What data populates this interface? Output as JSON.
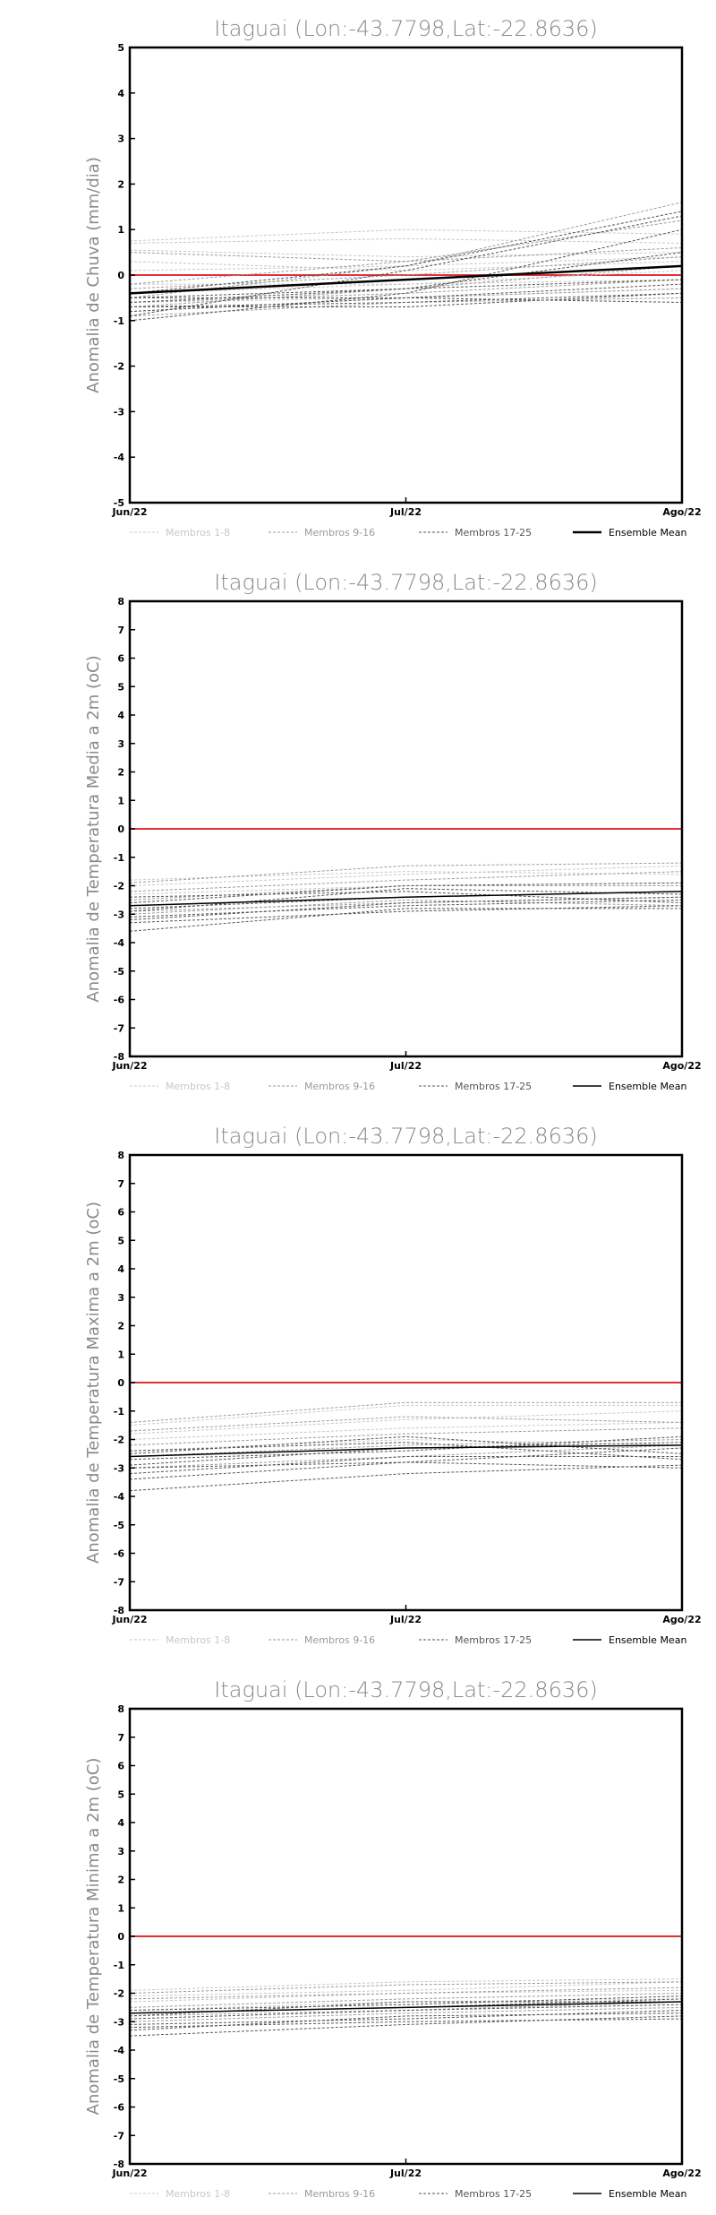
{
  "chart_data": [
    {
      "type": "line",
      "title": "Itaguai (Lon:-43.7798,Lat:-22.8636)",
      "ylabel": "Anomalia de Chuva (mm/dia)",
      "xlabel": "",
      "categories": [
        "Jun/22",
        "Jul/22",
        "Ago/22"
      ],
      "ylim": [
        -5,
        5
      ],
      "yticks": [
        "-5",
        "-4",
        "-3",
        "-2",
        "-1",
        "0",
        "1",
        "2",
        "3",
        "4",
        "5"
      ],
      "legend": [
        {
          "name": "Membros 1-8",
          "color": "#c8c8c8",
          "dash": "3,2",
          "width": 1
        },
        {
          "name": "Membros 9-16",
          "color": "#9a9a9a",
          "dash": "3,2",
          "width": 1
        },
        {
          "name": "Membros 17-25",
          "color": "#555555",
          "dash": "3,2",
          "width": 1
        },
        {
          "name": "Ensemble Mean",
          "color": "#000000",
          "dash": "",
          "width": 2.5
        }
      ],
      "reference_line": {
        "value": 0,
        "color": "#e03030"
      },
      "groups": [
        {
          "legend_index": 0,
          "series": [
            [
              0.75,
              1.0,
              0.9
            ],
            [
              0.55,
              0.4,
              0.5
            ],
            [
              -0.4,
              -0.2,
              0.1
            ],
            [
              0.3,
              0.1,
              0.3
            ],
            [
              -0.2,
              -0.2,
              -0.1
            ],
            [
              0.7,
              0.8,
              0.7
            ],
            [
              -0.6,
              -0.5,
              -0.3
            ],
            [
              0.1,
              0.2,
              0.4
            ]
          ]
        },
        {
          "legend_index": 1,
          "series": [
            [
              -0.5,
              0.2,
              1.6
            ],
            [
              -0.7,
              -0.3,
              0.2
            ],
            [
              0.5,
              0.3,
              1.2
            ],
            [
              -0.8,
              -0.5,
              -0.3
            ],
            [
              -0.3,
              0.0,
              0.4
            ],
            [
              -0.6,
              -0.4,
              -0.1
            ],
            [
              -0.9,
              -0.6,
              -0.5
            ],
            [
              -0.2,
              0.3,
              0.6
            ]
          ]
        },
        {
          "legend_index": 2,
          "series": [
            [
              -0.9,
              0.1,
              1.3
            ],
            [
              -0.5,
              -0.5,
              -0.6
            ],
            [
              -0.7,
              -0.6,
              -0.4
            ],
            [
              -1.0,
              -0.4,
              1.0
            ],
            [
              -0.4,
              0.2,
              1.4
            ],
            [
              -0.8,
              -0.5,
              -0.2
            ],
            [
              -0.6,
              -0.3,
              0.5
            ],
            [
              -0.7,
              -0.7,
              -0.4
            ],
            [
              -0.5,
              -0.3,
              -0.1
            ]
          ]
        },
        {
          "legend_index": 3,
          "series": [
            [
              -0.4,
              -0.1,
              0.2
            ]
          ]
        }
      ]
    },
    {
      "type": "line",
      "title": "Itaguai (Lon:-43.7798,Lat:-22.8636)",
      "ylabel": "Anomalia de Temperatura Media a 2m (oC)",
      "xlabel": "",
      "categories": [
        "Jun/22",
        "Jul/22",
        "Ago/22"
      ],
      "ylim": [
        -8,
        8
      ],
      "yticks": [
        "-8",
        "-7",
        "-6",
        "-5",
        "-4",
        "-3",
        "-2",
        "-1",
        "0",
        "1",
        "2",
        "3",
        "4",
        "5",
        "6",
        "7",
        "8"
      ],
      "legend": [
        {
          "name": "Membros 1-8",
          "color": "#c8c8c8",
          "dash": "3,2",
          "width": 1
        },
        {
          "name": "Membros 9-16",
          "color": "#9a9a9a",
          "dash": "3,2",
          "width": 1
        },
        {
          "name": "Membros 17-25",
          "color": "#555555",
          "dash": "3,2",
          "width": 1
        },
        {
          "name": "Ensemble Mean",
          "color": "#000000",
          "dash": "",
          "width": 1.5
        }
      ],
      "reference_line": {
        "value": 0,
        "color": "#e03030"
      },
      "groups": [
        {
          "legend_index": 0,
          "series": [
            [
              -2.0,
              -1.6,
              -1.3
            ],
            [
              -2.3,
              -2.0,
              -1.9
            ],
            [
              -2.7,
              -2.4,
              -2.2
            ],
            [
              -1.8,
              -1.5,
              -1.6
            ]
          ]
        },
        {
          "legend_index": 1,
          "series": [
            [
              -1.9,
              -1.3,
              -1.2
            ],
            [
              -2.5,
              -2.0,
              -2.0
            ],
            [
              -2.9,
              -2.6,
              -2.4
            ],
            [
              -3.0,
              -2.5,
              -2.7
            ],
            [
              -2.2,
              -1.8,
              -1.5
            ]
          ]
        },
        {
          "legend_index": 2,
          "series": [
            [
              -3.6,
              -2.8,
              -2.8
            ],
            [
              -3.2,
              -2.6,
              -2.4
            ],
            [
              -2.8,
              -2.4,
              -2.2
            ],
            [
              -2.6,
              -2.0,
              -1.9
            ],
            [
              -3.1,
              -2.7,
              -2.5
            ],
            [
              -2.4,
              -2.2,
              -2.6
            ],
            [
              -3.3,
              -2.9,
              -2.7
            ],
            [
              -2.9,
              -2.1,
              -2.3
            ]
          ]
        },
        {
          "legend_index": 3,
          "series": [
            [
              -2.7,
              -2.4,
              -2.2
            ]
          ]
        }
      ]
    },
    {
      "type": "line",
      "title": "Itaguai (Lon:-43.7798,Lat:-22.8636)",
      "ylabel": "Anomalia de Temperatura Maxima a 2m (oC)",
      "xlabel": "",
      "categories": [
        "Jun/22",
        "Jul/22",
        "Ago/22"
      ],
      "ylim": [
        -8,
        8
      ],
      "yticks": [
        "-8",
        "-7",
        "-6",
        "-5",
        "-4",
        "-3",
        "-2",
        "-1",
        "0",
        "1",
        "2",
        "3",
        "4",
        "5",
        "6",
        "7",
        "8"
      ],
      "legend": [
        {
          "name": "Membros 1-8",
          "color": "#c8c8c8",
          "dash": "3,2",
          "width": 1
        },
        {
          "name": "Membros 9-16",
          "color": "#9a9a9a",
          "dash": "3,2",
          "width": 1
        },
        {
          "name": "Membros 17-25",
          "color": "#555555",
          "dash": "3,2",
          "width": 1
        },
        {
          "name": "Ensemble Mean",
          "color": "#000000",
          "dash": "",
          "width": 1.5
        }
      ],
      "reference_line": {
        "value": 0,
        "color": "#e03030"
      },
      "groups": [
        {
          "legend_index": 0,
          "series": [
            [
              -1.5,
              -0.8,
              -0.8
            ],
            [
              -2.0,
              -1.6,
              -1.4
            ],
            [
              -2.4,
              -2.0,
              -2.2
            ],
            [
              -1.8,
              -1.3,
              -1.0
            ]
          ]
        },
        {
          "legend_index": 1,
          "series": [
            [
              -1.4,
              -0.7,
              -0.7
            ],
            [
              -2.6,
              -2.2,
              -2.0
            ],
            [
              -2.2,
              -1.8,
              -1.6
            ],
            [
              -3.0,
              -2.6,
              -2.2
            ],
            [
              -1.7,
              -1.2,
              -1.4
            ]
          ]
        },
        {
          "legend_index": 2,
          "series": [
            [
              -3.8,
              -3.2,
              -2.9
            ],
            [
              -3.2,
              -2.6,
              -2.6
            ],
            [
              -2.9,
              -2.3,
              -2.1
            ],
            [
              -2.5,
              -1.9,
              -2.5
            ],
            [
              -3.0,
              -2.8,
              -2.3
            ],
            [
              -2.7,
              -2.4,
              -1.9
            ],
            [
              -3.4,
              -2.8,
              -3.0
            ],
            [
              -2.4,
              -2.1,
              -2.7
            ]
          ]
        },
        {
          "legend_index": 3,
          "series": [
            [
              -2.6,
              -2.3,
              -2.2
            ]
          ]
        }
      ]
    },
    {
      "type": "line",
      "title": "Itaguai (Lon:-43.7798,Lat:-22.8636)",
      "ylabel": "Anomalia de Temperatura Minima a 2m (oC)",
      "xlabel": "",
      "categories": [
        "Jun/22",
        "Jul/22",
        "Ago/22"
      ],
      "ylim": [
        -8,
        8
      ],
      "yticks": [
        "-8",
        "-7",
        "-6",
        "-5",
        "-4",
        "-3",
        "-2",
        "-1",
        "0",
        "1",
        "2",
        "3",
        "4",
        "5",
        "6",
        "7",
        "8"
      ],
      "legend": [
        {
          "name": "Membros 1-8",
          "color": "#c8c8c8",
          "dash": "3,2",
          "width": 1
        },
        {
          "name": "Membros 9-16",
          "color": "#9a9a9a",
          "dash": "3,2",
          "width": 1
        },
        {
          "name": "Membros 17-25",
          "color": "#555555",
          "dash": "3,2",
          "width": 1
        },
        {
          "name": "Ensemble Mean",
          "color": "#000000",
          "dash": "",
          "width": 1.5
        }
      ],
      "reference_line": {
        "value": 0,
        "color": "#e03030"
      },
      "groups": [
        {
          "legend_index": 0,
          "series": [
            [
              -1.9,
              -1.6,
              -1.5
            ],
            [
              -2.3,
              -2.0,
              -1.9
            ],
            [
              -2.1,
              -1.9,
              -1.6
            ],
            [
              -2.6,
              -2.3,
              -2.2
            ]
          ]
        },
        {
          "legend_index": 1,
          "series": [
            [
              -2.0,
              -1.7,
              -1.6
            ],
            [
              -2.5,
              -2.2,
              -2.0
            ],
            [
              -2.8,
              -2.6,
              -2.3
            ],
            [
              -2.2,
              -2.0,
              -1.8
            ],
            [
              -3.0,
              -2.7,
              -2.5
            ]
          ]
        },
        {
          "legend_index": 2,
          "series": [
            [
              -3.5,
              -3.1,
              -2.8
            ],
            [
              -3.1,
              -2.9,
              -2.6
            ],
            [
              -2.7,
              -2.5,
              -2.2
            ],
            [
              -3.3,
              -2.8,
              -2.7
            ],
            [
              -2.9,
              -2.6,
              -2.4
            ],
            [
              -2.6,
              -2.4,
              -2.1
            ],
            [
              -3.2,
              -3.0,
              -2.9
            ],
            [
              -2.8,
              -2.3,
              -2.3
            ]
          ]
        },
        {
          "legend_index": 3,
          "series": [
            [
              -2.7,
              -2.5,
              -2.3
            ]
          ]
        }
      ]
    }
  ]
}
